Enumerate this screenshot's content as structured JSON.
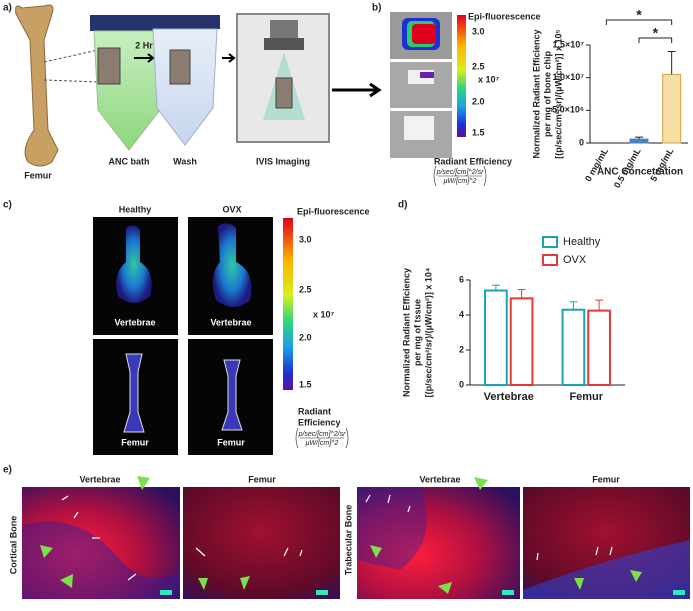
{
  "panels": {
    "a": {
      "label": "a)",
      "femur": "Femur",
      "bath": "ANC bath",
      "time": "2 Hr",
      "wash": "Wash",
      "imaging": "IVIS Imaging"
    },
    "b": {
      "label": "b)",
      "colorbar": {
        "title": "Epi-fluorescence",
        "ticks": [
          "3.0",
          "2.5",
          "2.0",
          "1.5"
        ],
        "scale": "x 10⁷",
        "unit": [
          "Radiant Efficiency"
        ],
        "numerator": "p/sec/[cm]^2/sr",
        "denominator": "μW/[cm]^2"
      }
    },
    "c": {
      "label": "c)",
      "columns": [
        "Healthy",
        "OVX"
      ],
      "image_labels": [
        [
          "Vertebrae",
          "Femur"
        ],
        [
          "Vertebrae",
          "Femur"
        ]
      ],
      "colorbar": {
        "title": "Epi-fluorescence",
        "ticks": [
          "3.0",
          "2.5",
          "2.0",
          "1.5"
        ],
        "scale": "x 10⁷",
        "unit": [
          "Radiant",
          "Efficiency"
        ],
        "numerator": "p/sec/[cm]^2/sr",
        "denominator": "μW/[cm]^2"
      }
    },
    "d": {
      "label": "d)"
    },
    "e": {
      "label": "e)",
      "columns": [
        "Vertebrae",
        "Femur",
        "Vertebrae",
        "Femur"
      ],
      "rows": [
        "Cortical Bone",
        "Trabecular Bone"
      ]
    }
  },
  "chart_data": [
    {
      "type": "bar",
      "categories": [
        "0 mg/mL",
        "0.5 mg/mL",
        "5 mg/mL"
      ],
      "values": [
        0,
        600000,
        10500000
      ],
      "errors": [
        0,
        300000,
        3500000
      ],
      "colors": [
        "#4a7fc1",
        "#4a7fc1",
        "#f5dfa4"
      ],
      "y_label": [
        "Normalized Radiant Efficiency",
        "per mg of bone chip",
        "[(p/sec/cm²/sr)/(µW/cm²)] x 10⁵"
      ],
      "x_label": "ANC Concetration",
      "ylim": [
        0,
        15000000
      ],
      "yticks": [
        0,
        {
          "value": 5000000,
          "label": "5.0×10⁶"
        },
        {
          "value": 10000000,
          "label": "1.0×10⁷"
        },
        {
          "value": 15000000,
          "label": "1.5×10⁷"
        }
      ],
      "annotations": [
        "*",
        "*"
      ]
    },
    {
      "type": "bar",
      "categories": [
        "Vertebrae",
        "Femur"
      ],
      "series": [
        {
          "name": "Healthy",
          "color": "#1aa3b8",
          "values": [
            5.4,
            4.3
          ],
          "errors": [
            0.3,
            0.45
          ]
        },
        {
          "name": "OVX",
          "color": "#e23a3a",
          "values": [
            4.95,
            4.25
          ],
          "errors": [
            0.5,
            0.6
          ]
        }
      ],
      "y_label": [
        "Normalized Radiant Efficiency",
        "per mg of tssue",
        "[(p/sec/cm²/sr)/(µW/cm²)] x 10⁴"
      ],
      "ylim": [
        0,
        6
      ],
      "yticks": [
        0,
        2,
        4,
        6
      ],
      "legend": "top-right"
    }
  ]
}
